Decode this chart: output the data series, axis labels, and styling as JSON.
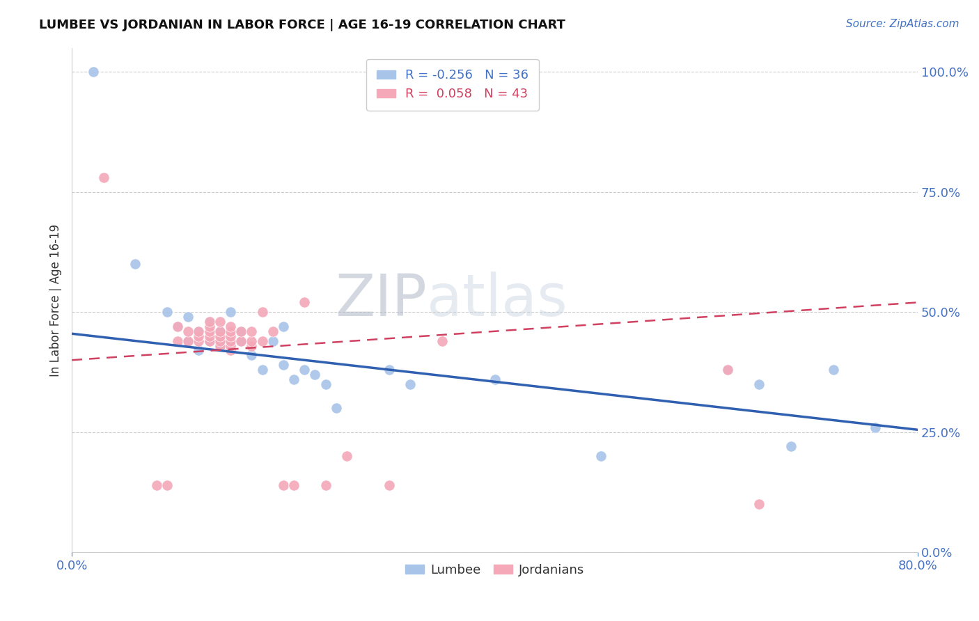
{
  "title": "LUMBEE VS JORDANIAN IN LABOR FORCE | AGE 16-19 CORRELATION CHART",
  "source_text": "Source: ZipAtlas.com",
  "ylabel": "In Labor Force | Age 16-19",
  "xlim": [
    0.0,
    0.8
  ],
  "ylim": [
    0.0,
    1.05
  ],
  "ytick_labels": [
    "0.0%",
    "25.0%",
    "50.0%",
    "75.0%",
    "100.0%"
  ],
  "ytick_vals": [
    0.0,
    0.25,
    0.5,
    0.75,
    1.0
  ],
  "xtick_labels": [
    "0.0%",
    "80.0%"
  ],
  "xtick_vals": [
    0.0,
    0.8
  ],
  "legend_r_lumbee": "-0.256",
  "legend_n_lumbee": "36",
  "legend_r_jordanian": "0.058",
  "legend_n_jordanian": "43",
  "lumbee_color": "#a8c4e8",
  "jordanian_color": "#f4a8b8",
  "lumbee_line_color": "#3060b0",
  "jordanian_line_color": "#d04060",
  "watermark_zip": "ZIP",
  "watermark_atlas": "atlas",
  "lumbee_x": [
    0.02,
    0.06,
    0.09,
    0.1,
    0.11,
    0.11,
    0.12,
    0.12,
    0.13,
    0.13,
    0.14,
    0.14,
    0.14,
    0.15,
    0.15,
    0.16,
    0.16,
    0.17,
    0.18,
    0.19,
    0.2,
    0.2,
    0.21,
    0.22,
    0.23,
    0.24,
    0.25,
    0.3,
    0.32,
    0.4,
    0.5,
    0.62,
    0.65,
    0.68,
    0.72,
    0.76
  ],
  "lumbee_y": [
    1.0,
    0.6,
    0.5,
    0.47,
    0.44,
    0.49,
    0.46,
    0.42,
    0.44,
    0.48,
    0.44,
    0.43,
    0.46,
    0.5,
    0.43,
    0.44,
    0.46,
    0.41,
    0.38,
    0.44,
    0.39,
    0.47,
    0.36,
    0.38,
    0.37,
    0.35,
    0.3,
    0.38,
    0.35,
    0.36,
    0.2,
    0.38,
    0.35,
    0.22,
    0.38,
    0.26
  ],
  "jordanian_x": [
    0.03,
    0.08,
    0.09,
    0.1,
    0.1,
    0.11,
    0.11,
    0.12,
    0.12,
    0.12,
    0.13,
    0.13,
    0.13,
    0.13,
    0.13,
    0.14,
    0.14,
    0.14,
    0.14,
    0.14,
    0.15,
    0.15,
    0.15,
    0.15,
    0.15,
    0.15,
    0.16,
    0.16,
    0.17,
    0.17,
    0.17,
    0.18,
    0.18,
    0.19,
    0.2,
    0.21,
    0.22,
    0.24,
    0.26,
    0.3,
    0.35,
    0.62,
    0.65
  ],
  "jordanian_y": [
    0.78,
    0.14,
    0.14,
    0.44,
    0.47,
    0.44,
    0.46,
    0.44,
    0.45,
    0.46,
    0.44,
    0.45,
    0.46,
    0.47,
    0.48,
    0.43,
    0.44,
    0.45,
    0.46,
    0.48,
    0.42,
    0.43,
    0.44,
    0.45,
    0.46,
    0.47,
    0.44,
    0.46,
    0.43,
    0.44,
    0.46,
    0.44,
    0.5,
    0.46,
    0.14,
    0.14,
    0.52,
    0.14,
    0.2,
    0.14,
    0.44,
    0.38,
    0.1
  ],
  "lumbee_trend_x0": 0.0,
  "lumbee_trend_y0": 0.455,
  "lumbee_trend_x1": 0.8,
  "lumbee_trend_y1": 0.255,
  "jordanian_trend_x0": 0.0,
  "jordanian_trend_y0": 0.4,
  "jordanian_trend_x1": 0.8,
  "jordanian_trend_y1": 0.52
}
